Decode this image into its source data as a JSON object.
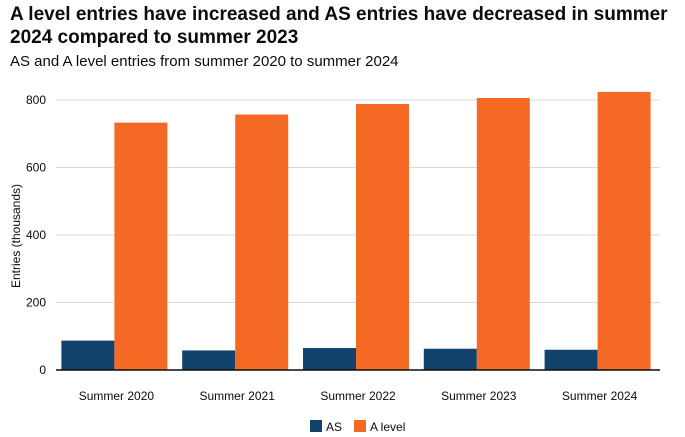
{
  "title": "A level entries have increased and AS entries have decreased in summer 2024 compared to summer 2023",
  "subtitle": "AS and A level entries from summer 2020 to summer 2024",
  "chart_data": {
    "type": "bar",
    "title": "A level entries have increased and AS entries have decreased in summer 2024 compared to summer 2023",
    "subtitle": "AS and A level entries from summer 2020 to summer 2024",
    "xlabel": "",
    "ylabel": "Entries (thousands)",
    "ylim": [
      0,
      800
    ],
    "yticks": [
      0,
      200,
      400,
      600,
      800
    ],
    "grid": true,
    "legend_position": "bottom",
    "categories": [
      "Summer 2020",
      "Summer 2021",
      "Summer 2022",
      "Summer 2023",
      "Summer 2024"
    ],
    "series": [
      {
        "name": "AS",
        "color": "#12436d",
        "values": [
          87,
          58,
          65,
          63,
          60
        ]
      },
      {
        "name": "A level",
        "color": "#f46a25",
        "values": [
          733,
          757,
          788,
          806,
          824
        ]
      }
    ]
  }
}
